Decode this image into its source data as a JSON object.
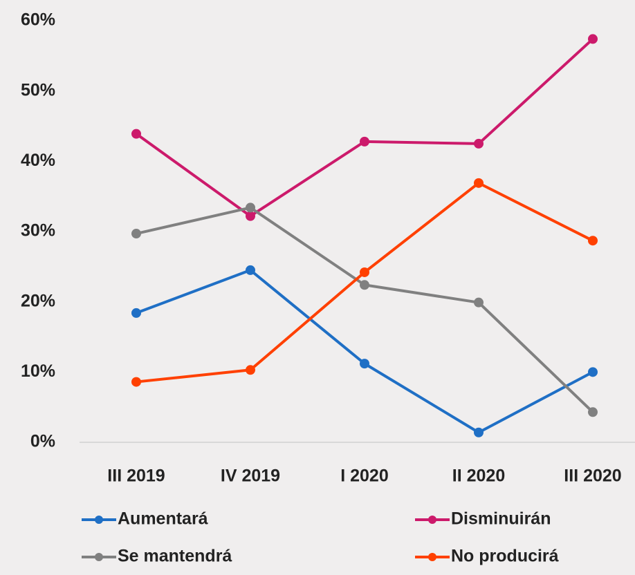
{
  "chart_data": {
    "type": "line",
    "categories": [
      "III 2019",
      "IV 2019",
      "I 2020",
      "II 2020",
      "III 2020"
    ],
    "series": [
      {
        "name": "Aumentará",
        "color": "#1f6fc5",
        "values": [
          18.4,
          24.5,
          11.2,
          1.4,
          10.0
        ]
      },
      {
        "name": "Disminuirán",
        "color": "#cc1a6b",
        "values": [
          43.9,
          32.2,
          42.8,
          42.5,
          57.4
        ]
      },
      {
        "name": "Se mantendrá",
        "color": "#808080",
        "values": [
          29.7,
          33.4,
          22.4,
          19.9,
          4.3
        ]
      },
      {
        "name": "No producirá",
        "color": "#ff4000",
        "values": [
          8.6,
          10.3,
          24.2,
          36.9,
          28.7
        ]
      }
    ],
    "ylim": [
      0,
      60
    ],
    "yticks": [
      {
        "value": 0,
        "label": "0%"
      },
      {
        "value": 10,
        "label": "10%"
      },
      {
        "value": 20,
        "label": "20%"
      },
      {
        "value": 30,
        "label": "30%"
      },
      {
        "value": 40,
        "label": "40%"
      },
      {
        "value": 50,
        "label": "50%"
      },
      {
        "value": 60,
        "label": "60%"
      }
    ],
    "grid": false
  }
}
